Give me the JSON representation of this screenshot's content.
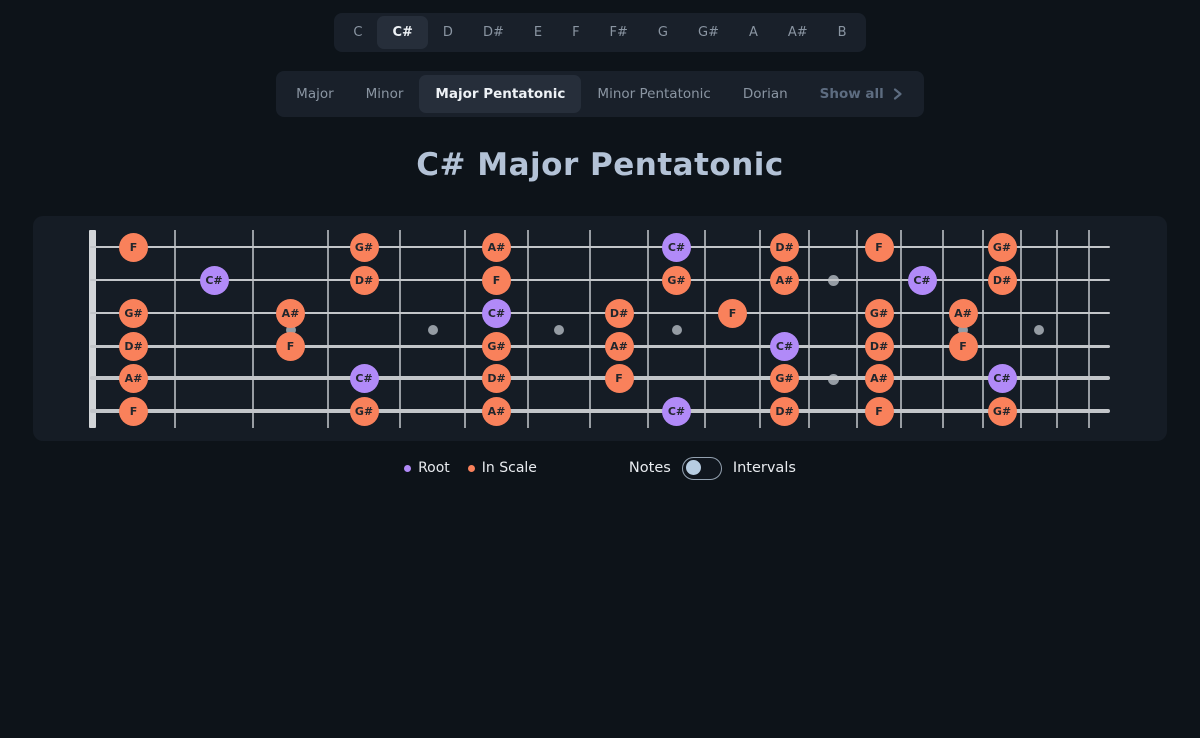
{
  "note_selector": {
    "options": [
      "C",
      "C#",
      "D",
      "D#",
      "E",
      "F",
      "F#",
      "G",
      "G#",
      "A",
      "A#",
      "B"
    ],
    "selected": "C#"
  },
  "scale_selector": {
    "options": [
      "Major",
      "Minor",
      "Major Pentatonic",
      "Minor Pentatonic",
      "Dorian"
    ],
    "selected": "Major Pentatonic",
    "show_all_label": "Show all",
    "show_all_icon": "chevron-right-icon"
  },
  "title": "C# Major Pentatonic",
  "fretboard": {
    "num_frets": 18,
    "num_strings": 6,
    "marker_frets_single": [
      3,
      5,
      7,
      9,
      15,
      17
    ],
    "marker_frets_double": [
      12
    ],
    "colors": {
      "root": "#b18af8",
      "in_scale": "#f9815b"
    },
    "notes": [
      {
        "string": 1,
        "fret": 1,
        "label": "F",
        "role": "scale"
      },
      {
        "string": 1,
        "fret": 4,
        "label": "G#",
        "role": "scale"
      },
      {
        "string": 1,
        "fret": 6,
        "label": "A#",
        "role": "scale"
      },
      {
        "string": 1,
        "fret": 9,
        "label": "C#",
        "role": "root"
      },
      {
        "string": 1,
        "fret": 11,
        "label": "D#",
        "role": "scale"
      },
      {
        "string": 1,
        "fret": 13,
        "label": "F",
        "role": "scale"
      },
      {
        "string": 1,
        "fret": 16,
        "label": "G#",
        "role": "scale"
      },
      {
        "string": 2,
        "fret": 2,
        "label": "C#",
        "role": "root"
      },
      {
        "string": 2,
        "fret": 4,
        "label": "D#",
        "role": "scale"
      },
      {
        "string": 2,
        "fret": 6,
        "label": "F",
        "role": "scale"
      },
      {
        "string": 2,
        "fret": 9,
        "label": "G#",
        "role": "scale"
      },
      {
        "string": 2,
        "fret": 11,
        "label": "A#",
        "role": "scale"
      },
      {
        "string": 2,
        "fret": 14,
        "label": "C#",
        "role": "root"
      },
      {
        "string": 2,
        "fret": 16,
        "label": "D#",
        "role": "scale"
      },
      {
        "string": 3,
        "fret": 1,
        "label": "G#",
        "role": "scale"
      },
      {
        "string": 3,
        "fret": 3,
        "label": "A#",
        "role": "scale"
      },
      {
        "string": 3,
        "fret": 6,
        "label": "C#",
        "role": "root"
      },
      {
        "string": 3,
        "fret": 8,
        "label": "D#",
        "role": "scale"
      },
      {
        "string": 3,
        "fret": 10,
        "label": "F",
        "role": "scale"
      },
      {
        "string": 3,
        "fret": 13,
        "label": "G#",
        "role": "scale"
      },
      {
        "string": 3,
        "fret": 15,
        "label": "A#",
        "role": "scale"
      },
      {
        "string": 4,
        "fret": 1,
        "label": "D#",
        "role": "scale"
      },
      {
        "string": 4,
        "fret": 3,
        "label": "F",
        "role": "scale"
      },
      {
        "string": 4,
        "fret": 6,
        "label": "G#",
        "role": "scale"
      },
      {
        "string": 4,
        "fret": 8,
        "label": "A#",
        "role": "scale"
      },
      {
        "string": 4,
        "fret": 11,
        "label": "C#",
        "role": "root"
      },
      {
        "string": 4,
        "fret": 13,
        "label": "D#",
        "role": "scale"
      },
      {
        "string": 4,
        "fret": 15,
        "label": "F",
        "role": "scale"
      },
      {
        "string": 5,
        "fret": 1,
        "label": "A#",
        "role": "scale"
      },
      {
        "string": 5,
        "fret": 4,
        "label": "C#",
        "role": "root"
      },
      {
        "string": 5,
        "fret": 6,
        "label": "D#",
        "role": "scale"
      },
      {
        "string": 5,
        "fret": 8,
        "label": "F",
        "role": "scale"
      },
      {
        "string": 5,
        "fret": 11,
        "label": "G#",
        "role": "scale"
      },
      {
        "string": 5,
        "fret": 13,
        "label": "A#",
        "role": "scale"
      },
      {
        "string": 5,
        "fret": 16,
        "label": "C#",
        "role": "root"
      },
      {
        "string": 6,
        "fret": 1,
        "label": "F",
        "role": "scale"
      },
      {
        "string": 6,
        "fret": 4,
        "label": "G#",
        "role": "scale"
      },
      {
        "string": 6,
        "fret": 6,
        "label": "A#",
        "role": "scale"
      },
      {
        "string": 6,
        "fret": 9,
        "label": "C#",
        "role": "root"
      },
      {
        "string": 6,
        "fret": 11,
        "label": "D#",
        "role": "scale"
      },
      {
        "string": 6,
        "fret": 13,
        "label": "F",
        "role": "scale"
      },
      {
        "string": 6,
        "fret": 16,
        "label": "G#",
        "role": "scale"
      }
    ]
  },
  "legend": {
    "items": [
      {
        "label": "Root",
        "color": "#b18af8",
        "icon": "root-dot-icon"
      },
      {
        "label": "In Scale",
        "color": "#f9815b",
        "icon": "in-scale-dot-icon"
      }
    ]
  },
  "display_toggle": {
    "left_label": "Notes",
    "right_label": "Intervals",
    "state": "Notes"
  }
}
